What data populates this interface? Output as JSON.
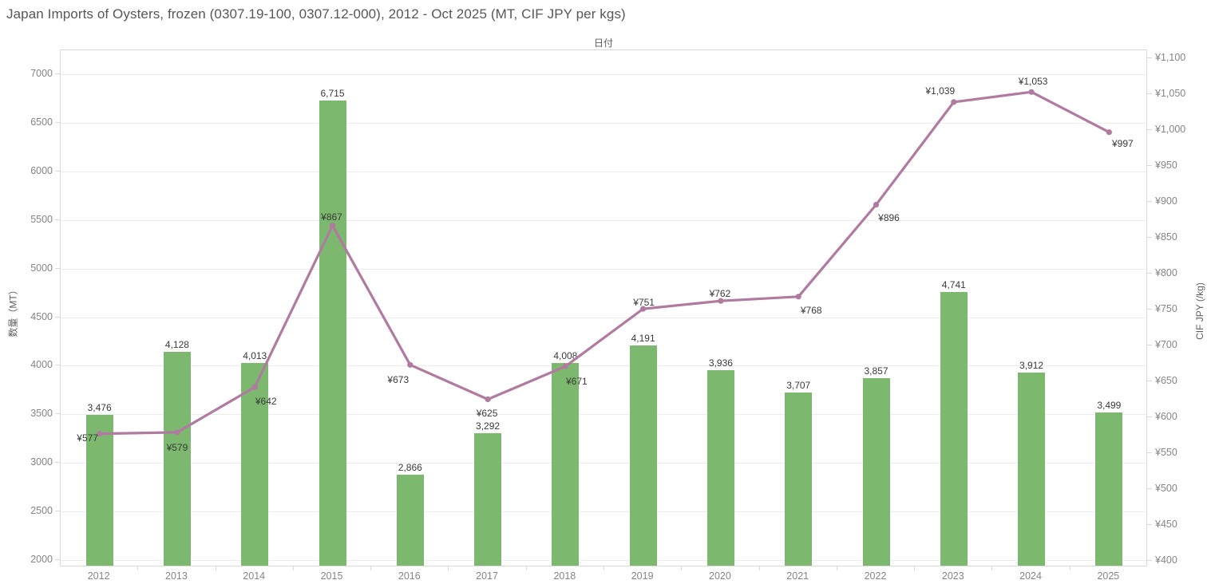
{
  "header": {
    "title": "Japan Imports of Oysters, frozen (0307.19-100, 0307.12-000), 2012 - Oct 2025 (MT, CIF JPY per kgs)"
  },
  "colors": {
    "bar": "#7cb86e",
    "line": "#b07aa1",
    "grid": "#ececec",
    "axis_line": "#d9d9d9",
    "tick_label": "#858585",
    "data_label": "#3a3a3a",
    "title_text": "#575757"
  },
  "chart_data": {
    "type": "bar+line-dual-axis",
    "title": "Japan Imports of Oysters, frozen (0307.19-100, 0307.12-000), 2012 - Oct 2025 (MT, CIF JPY per kgs)",
    "x_axis_title": "日付",
    "categories": [
      "2012",
      "2013",
      "2014",
      "2015",
      "2016",
      "2017",
      "2018",
      "2019",
      "2020",
      "2021",
      "2022",
      "2023",
      "2024",
      "2025"
    ],
    "series": [
      {
        "name": "数量（MT）",
        "type": "bar",
        "axis": "left",
        "values": [
          3476,
          4128,
          4013,
          6715,
          2866,
          3292,
          4008,
          4191,
          3936,
          3707,
          3857,
          4741,
          3912,
          3499
        ],
        "labels": [
          "3,476",
          "4,128",
          "4,013",
          "6,715",
          "2,866",
          "3,292",
          "4,008",
          "4,191",
          "3,936",
          "3,707",
          "3,857",
          "4,741",
          "3,912",
          "3,499"
        ]
      },
      {
        "name": "CIF JPY (/kg)",
        "type": "line",
        "axis": "right",
        "values": [
          577,
          579,
          642,
          867,
          673,
          625,
          671,
          751,
          762,
          768,
          896,
          1039,
          1053,
          997
        ],
        "labels": [
          "¥577",
          "¥579",
          "¥642",
          "¥867",
          "¥673",
          "¥625",
          "¥671",
          "¥751",
          "¥762",
          "¥768",
          "¥896",
          "¥1,039",
          "¥1,053",
          "¥997"
        ],
        "label_offsets": [
          [
            -15,
            5
          ],
          [
            0,
            19
          ],
          [
            14,
            18
          ],
          [
            -1,
            -11
          ],
          [
            -15,
            19
          ],
          [
            -1,
            17
          ],
          [
            14,
            19
          ],
          [
            1,
            -8
          ],
          [
            -1,
            -9
          ],
          [
            16,
            17
          ],
          [
            16,
            16
          ],
          [
            -17,
            -14
          ],
          [
            2,
            -13
          ],
          [
            17,
            14
          ]
        ]
      }
    ],
    "left_axis": {
      "title": "数量（MT）",
      "min": 2000,
      "max": 7000,
      "tick_values": [
        2000,
        2500,
        3000,
        3500,
        4000,
        4500,
        5000,
        5500,
        6000,
        6500,
        7000
      ],
      "tick_labels": [
        "2000",
        "2500",
        "3000",
        "3500",
        "4000",
        "4500",
        "5000",
        "5500",
        "6000",
        "6500",
        "7000"
      ],
      "grid": true
    },
    "right_axis": {
      "title": "CIF JPY (/kg)",
      "min": 400,
      "max": 1100,
      "tick_values": [
        400,
        450,
        500,
        550,
        600,
        650,
        700,
        750,
        800,
        850,
        900,
        950,
        1000,
        1050,
        1100
      ],
      "tick_labels": [
        "¥400",
        "¥450",
        "¥500",
        "¥550",
        "¥600",
        "¥650",
        "¥700",
        "¥750",
        "¥800",
        "¥850",
        "¥900",
        "¥950",
        "¥1,000",
        "¥1,050",
        "¥1,100"
      ],
      "grid": false
    }
  }
}
